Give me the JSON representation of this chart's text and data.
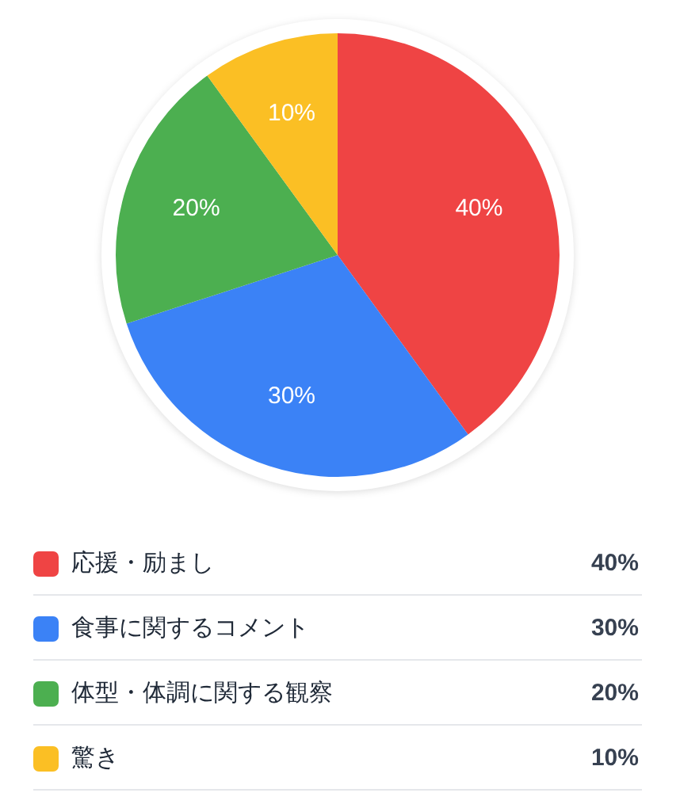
{
  "chart_data": {
    "type": "pie",
    "categories": [
      "応援・励まし",
      "食事に関するコメント",
      "体型・体調に関する観察",
      "驚き"
    ],
    "values": [
      40,
      30,
      20,
      10
    ],
    "value_labels": [
      "40%",
      "30%",
      "20%",
      "10%"
    ],
    "colors": [
      "#ef4444",
      "#3b82f6",
      "#4caf50",
      "#fbbf24"
    ],
    "legend": "bottom"
  }
}
